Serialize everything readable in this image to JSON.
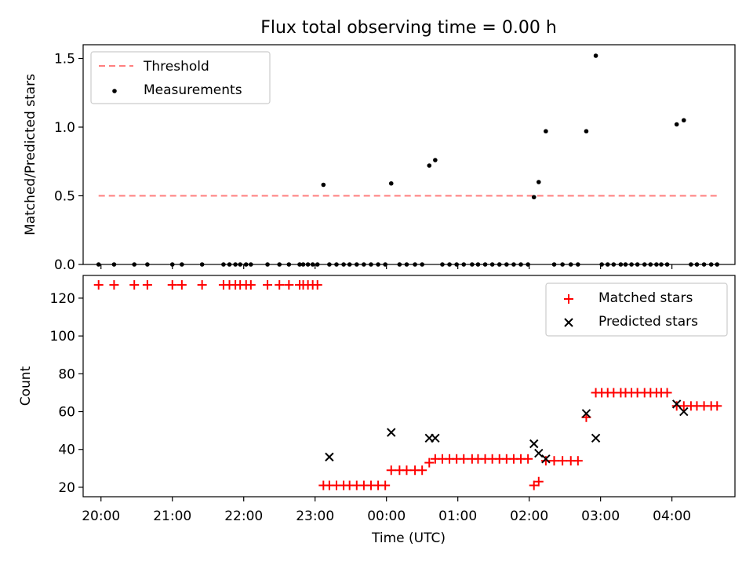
{
  "chart_data": [
    {
      "type": "scatter",
      "title": "Flux total observing time = 0.00 h",
      "ylabel": "Matched/Predicted stars",
      "xlabel": "",
      "xlim": [
        "19:45",
        "04:53"
      ],
      "ylim": [
        0,
        1.6
      ],
      "yticks": [
        "0.0",
        "0.5",
        "1.0",
        "1.5"
      ],
      "legend_position": "top-left",
      "grid": false,
      "series": [
        {
          "name": "Threshold",
          "kind": "dashed-line",
          "color": "#ff7f7f",
          "x": [
            "19:58",
            "04:40"
          ],
          "y": [
            0.5,
            0.5
          ]
        },
        {
          "name": "Measurements",
          "kind": "dot",
          "color": "#000000",
          "x": [
            "19:58",
            "20:11",
            "20:28",
            "20:39",
            "21:00",
            "21:08",
            "21:25",
            "21:43",
            "21:48",
            "21:53",
            "21:57",
            "22:02",
            "22:06",
            "22:20",
            "22:30",
            "22:38",
            "22:47",
            "22:50",
            "22:54",
            "22:58",
            "23:02",
            "23:07",
            "23:12",
            "23:18",
            "23:24",
            "23:29",
            "23:35",
            "23:41",
            "23:47",
            "23:53",
            "23:59",
            "00:04",
            "00:11",
            "00:17",
            "00:24",
            "00:30",
            "00:36",
            "00:41",
            "00:47",
            "00:53",
            "00:59",
            "01:05",
            "01:12",
            "01:17",
            "01:23",
            "01:29",
            "01:35",
            "01:41",
            "01:47",
            "01:53",
            "01:59",
            "02:04",
            "02:08",
            "02:14",
            "02:21",
            "02:28",
            "02:35",
            "02:41",
            "02:48",
            "02:56",
            "03:01",
            "03:06",
            "03:11",
            "03:17",
            "03:21",
            "03:26",
            "03:31",
            "03:37",
            "03:42",
            "03:47",
            "03:51",
            "03:56",
            "04:04",
            "04:10",
            "04:16",
            "04:21",
            "04:27",
            "04:33",
            "04:38"
          ],
          "y": [
            0,
            0,
            0,
            0,
            0,
            0,
            0,
            0,
            0,
            0,
            0,
            0,
            0,
            0,
            0,
            0,
            0,
            0,
            0,
            0,
            0,
            0.58,
            0,
            0,
            0,
            0,
            0,
            0,
            0,
            0,
            0,
            0.59,
            0,
            0,
            0,
            0,
            0.72,
            0.76,
            0,
            0,
            0,
            0,
            0,
            0,
            0,
            0,
            0,
            0,
            0,
            0,
            0,
            0.49,
            0.6,
            0.97,
            0,
            0,
            0,
            0,
            0.97,
            1.52,
            0,
            0,
            0,
            0,
            0,
            0,
            0,
            0,
            0,
            0,
            0,
            0,
            1.02,
            1.05,
            0,
            0,
            0,
            0,
            0
          ]
        }
      ]
    },
    {
      "type": "scatter",
      "title": "",
      "ylabel": "Count",
      "xlabel": "Time (UTC)",
      "xlim": [
        "19:45",
        "04:53"
      ],
      "ylim": [
        15,
        132
      ],
      "yticks": [
        "20",
        "40",
        "60",
        "80",
        "100",
        "120"
      ],
      "xticks": [
        "20:00",
        "21:00",
        "22:00",
        "23:00",
        "00:00",
        "01:00",
        "02:00",
        "03:00",
        "04:00"
      ],
      "legend_position": "top-right",
      "grid": false,
      "series": [
        {
          "name": "Matched stars",
          "kind": "plus",
          "color": "#ff0000",
          "x": [
            "19:58",
            "20:11",
            "20:28",
            "20:39",
            "21:00",
            "21:08",
            "21:25",
            "21:43",
            "21:48",
            "21:53",
            "21:57",
            "22:02",
            "22:06",
            "22:20",
            "22:30",
            "22:38",
            "22:47",
            "22:50",
            "22:54",
            "22:58",
            "23:02",
            "23:07",
            "23:12",
            "23:18",
            "23:24",
            "23:29",
            "23:35",
            "23:41",
            "23:47",
            "23:53",
            "23:59",
            "00:04",
            "00:11",
            "00:17",
            "00:24",
            "00:30",
            "00:36",
            "00:41",
            "00:47",
            "00:53",
            "00:59",
            "01:05",
            "01:12",
            "01:17",
            "01:23",
            "01:29",
            "01:35",
            "01:41",
            "01:47",
            "01:53",
            "01:59",
            "02:04",
            "02:08",
            "02:14",
            "02:21",
            "02:28",
            "02:35",
            "02:41",
            "02:48",
            "02:56",
            "03:01",
            "03:06",
            "03:11",
            "03:17",
            "03:21",
            "03:26",
            "03:31",
            "03:37",
            "03:42",
            "03:47",
            "03:51",
            "03:56",
            "04:04",
            "04:10",
            "04:16",
            "04:21",
            "04:27",
            "04:33",
            "04:38"
          ],
          "y": [
            127,
            127,
            127,
            127,
            127,
            127,
            127,
            127,
            127,
            127,
            127,
            127,
            127,
            127,
            127,
            127,
            127,
            127,
            127,
            127,
            127,
            21,
            21,
            21,
            21,
            21,
            21,
            21,
            21,
            21,
            21,
            29,
            29,
            29,
            29,
            29,
            33,
            35,
            35,
            35,
            35,
            35,
            35,
            35,
            35,
            35,
            35,
            35,
            35,
            35,
            35,
            21,
            23,
            34,
            34,
            34,
            34,
            34,
            57,
            70,
            70,
            70,
            70,
            70,
            70,
            70,
            70,
            70,
            70,
            70,
            70,
            70,
            63,
            63,
            63,
            63,
            63,
            63,
            63
          ]
        },
        {
          "name": "Predicted stars",
          "kind": "x",
          "color": "#000000",
          "x": [
            "23:12",
            "00:04",
            "00:36",
            "00:41",
            "02:04",
            "02:08",
            "02:14",
            "02:48",
            "02:56",
            "04:04",
            "04:10"
          ],
          "y": [
            36,
            49,
            46,
            46,
            43,
            38,
            35,
            59,
            46,
            64,
            60
          ]
        }
      ]
    }
  ]
}
